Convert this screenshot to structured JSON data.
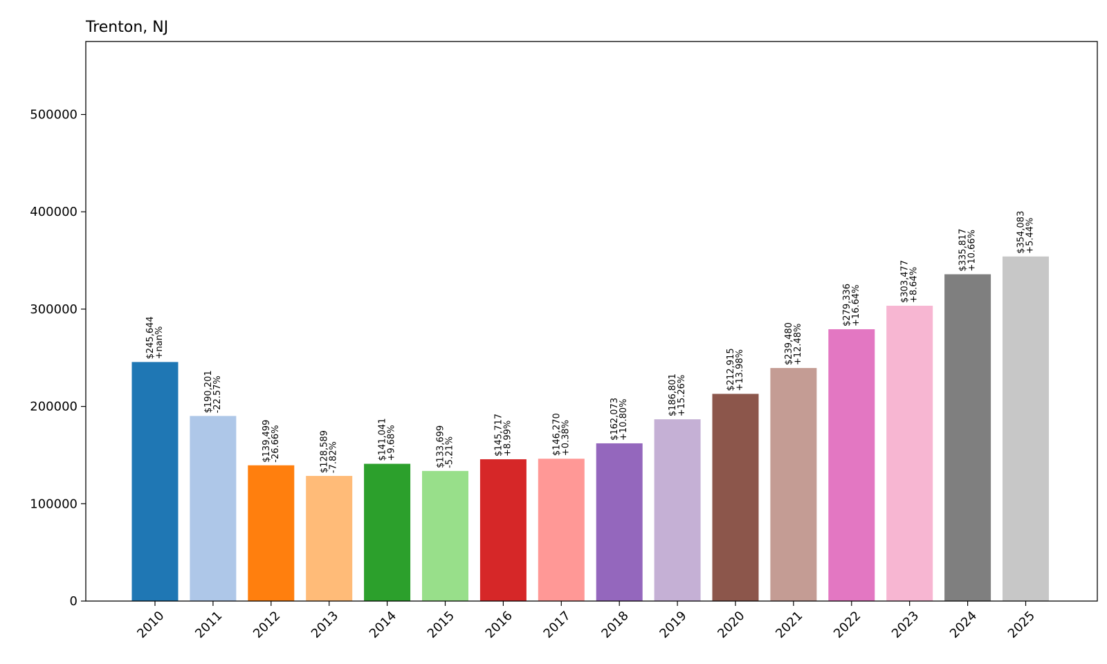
{
  "chart_data": {
    "type": "bar",
    "title": "Trenton, NJ",
    "xlabel": "",
    "ylabel": "",
    "ylim": [
      0,
      575000
    ],
    "yticks": [
      0,
      100000,
      200000,
      300000,
      400000,
      500000
    ],
    "grid": false,
    "categories": [
      "2010",
      "2011",
      "2012",
      "2013",
      "2014",
      "2015",
      "2016",
      "2017",
      "2018",
      "2019",
      "2020",
      "2021",
      "2022",
      "2023",
      "2024",
      "2025"
    ],
    "values": [
      245644,
      190201,
      139499,
      128589,
      141041,
      133699,
      145717,
      146270,
      162073,
      186801,
      212915,
      239480,
      279336,
      303477,
      335817,
      354083
    ],
    "value_labels": [
      "$245,644",
      "$190,201",
      "$139,499",
      "$128,589",
      "$141,041",
      "$133,699",
      "$145,717",
      "$146,270",
      "$162,073",
      "$186,801",
      "$212,915",
      "$239,480",
      "$279,336",
      "$303,477",
      "$335,817",
      "$354,083"
    ],
    "change_labels": [
      "+nan%",
      "-22.57%",
      "-26.66%",
      "-7.82%",
      "+9.68%",
      "-5.21%",
      "+8.99%",
      "+0.38%",
      "+10.80%",
      "+15.26%",
      "+13.98%",
      "+12.48%",
      "+16.64%",
      "+8.64%",
      "+10.66%",
      "+5.44%"
    ],
    "colors": [
      "#1f77b4",
      "#aec7e8",
      "#ff7f0e",
      "#ffbb78",
      "#2ca02c",
      "#98df8a",
      "#d62728",
      "#ff9896",
      "#9467bd",
      "#c5b0d5",
      "#8c564b",
      "#c49c94",
      "#e377c2",
      "#f7b6d2",
      "#7f7f7f",
      "#c7c7c7"
    ]
  }
}
